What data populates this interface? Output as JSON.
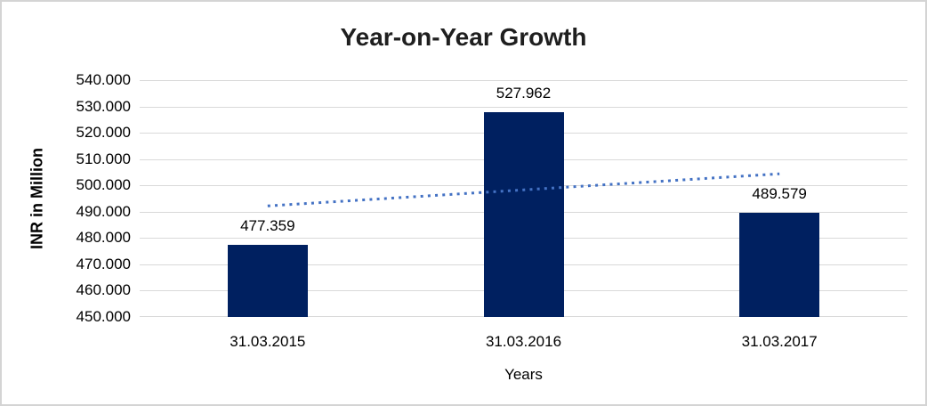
{
  "chart_data": {
    "type": "bar",
    "title": "Year-on-Year Growth",
    "xlabel": "Years",
    "ylabel": "INR in Million",
    "categories": [
      "31.03.2015",
      "31.03.2016",
      "31.03.2017"
    ],
    "values": [
      477.359,
      527.962,
      489.579
    ],
    "data_labels": [
      "477.359",
      "527.962",
      "489.579"
    ],
    "ylim": [
      450,
      540
    ],
    "ytick_step": 10,
    "ytick_labels": [
      "450.000",
      "460.000",
      "470.000",
      "480.000",
      "490.000",
      "500.000",
      "510.000",
      "520.000",
      "530.000",
      "540.000"
    ],
    "grid": true,
    "legend": "none",
    "bar_color": "#002060",
    "gridline_color": "#d9d9d9",
    "trendline": {
      "type": "linear",
      "style": "dotted",
      "color": "#4472C4",
      "start_value": 492.2,
      "end_value": 504.4
    }
  }
}
